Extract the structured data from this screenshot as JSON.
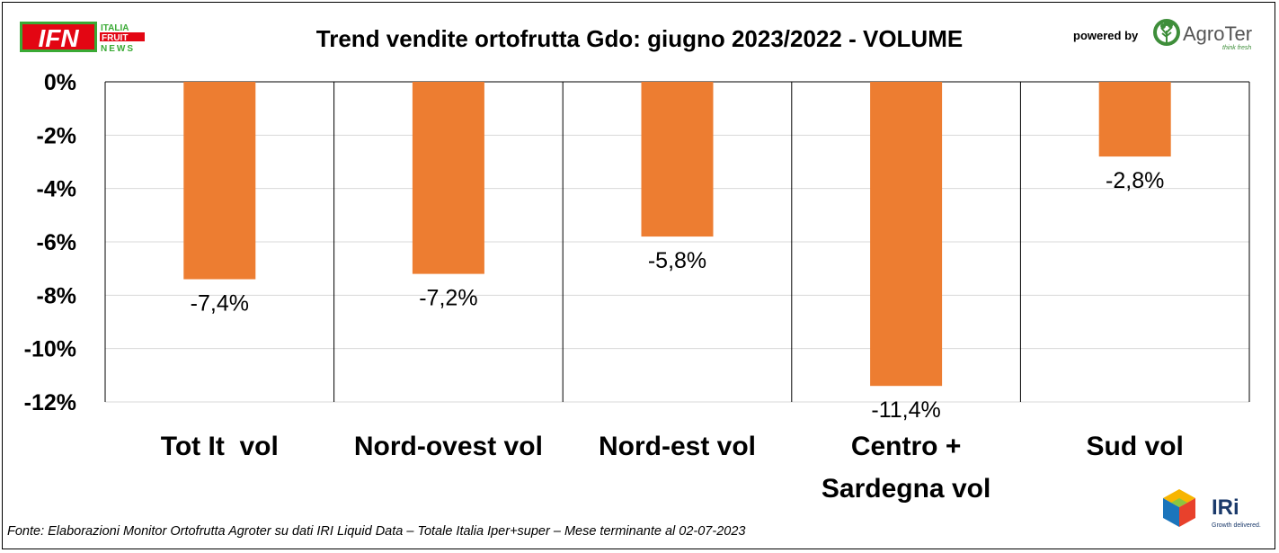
{
  "header": {
    "title": "Trend vendite ortofrutta Gdo: giugno 2023/2022 - VOLUME",
    "powered_by": "powered by",
    "ifn_logo": {
      "mark": "IFN",
      "lines": [
        "ITALIA",
        "FRUIT",
        "NEWS"
      ]
    },
    "agroter_logo": {
      "name": "AgroTer",
      "tagline": "think fresh"
    }
  },
  "footer": {
    "source": "Fonte: Elaborazioni Monitor Ortofrutta Agroter su dati IRI Liquid Data – Totale Italia Iper+super – Mese terminante al 02-07-2023",
    "iri_logo": {
      "name": "IRi",
      "tagline": "Growth delivered."
    }
  },
  "chart_data": {
    "type": "bar",
    "title": "Trend vendite ortofrutta Gdo: giugno 2023/2022 - VOLUME",
    "categories": [
      [
        "Tot It  vol"
      ],
      [
        "Nord-ovest vol"
      ],
      [
        "Nord-est vol"
      ],
      [
        "Centro +",
        "Sardegna vol"
      ],
      [
        "Sud vol"
      ]
    ],
    "values": [
      -7.4,
      -7.2,
      -5.8,
      -11.4,
      -2.8
    ],
    "data_labels": [
      "-7,4%",
      "-7,2%",
      "-5,8%",
      "-11,4%",
      "-2,8%"
    ],
    "ylim": [
      -12,
      0
    ],
    "yticks": [
      0,
      -2,
      -4,
      -6,
      -8,
      -10,
      -12
    ],
    "ytick_labels": [
      "0%",
      "-2%",
      "-4%",
      "-6%",
      "-8%",
      "-10%",
      "-12%"
    ],
    "grid": true,
    "colors": {
      "bar": "#ED7D31",
      "grid": "#D9D9D9",
      "ifn_red": "#E30613",
      "ifn_green": "#3AAA35",
      "agroter_green": "#3E8E3A"
    }
  }
}
